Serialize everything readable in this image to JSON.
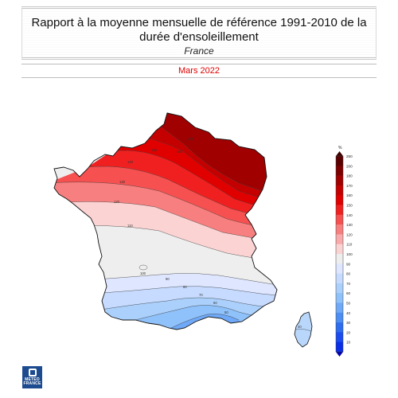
{
  "header": {
    "title": "Rapport à la moyenne mensuelle de référence 1991-2010 de la durée d'ensoleillement",
    "subtitle": "France",
    "period": "Mars 2022"
  },
  "legend": {
    "unit": "%",
    "levels": [
      "250",
      "200",
      "180",
      "170",
      "160",
      "150",
      "140",
      "130",
      "120",
      "110",
      "100",
      "90",
      "80",
      "70",
      "60",
      "50",
      "40",
      "30",
      "20",
      "10"
    ],
    "colors": [
      "#5a0000",
      "#7d0000",
      "#a00000",
      "#c40000",
      "#e00000",
      "#f02020",
      "#f65050",
      "#f87f7f",
      "#f9aaaa",
      "#fbd3d3",
      "#eeeeee",
      "#dfe6ff",
      "#c6dbff",
      "#abd0fb",
      "#8fc1fa",
      "#6fa9f7",
      "#4c8ef3",
      "#2d6df0",
      "#1a4cf0",
      "#0a2fe8"
    ]
  },
  "map": {
    "contour_labels": [
      "170",
      "160",
      "150",
      "140",
      "130",
      "120",
      "110",
      "100",
      "90",
      "80",
      "70",
      "60",
      "50",
      "40"
    ]
  },
  "logo": {
    "line1": "METEO",
    "line2": "FRANCE"
  }
}
